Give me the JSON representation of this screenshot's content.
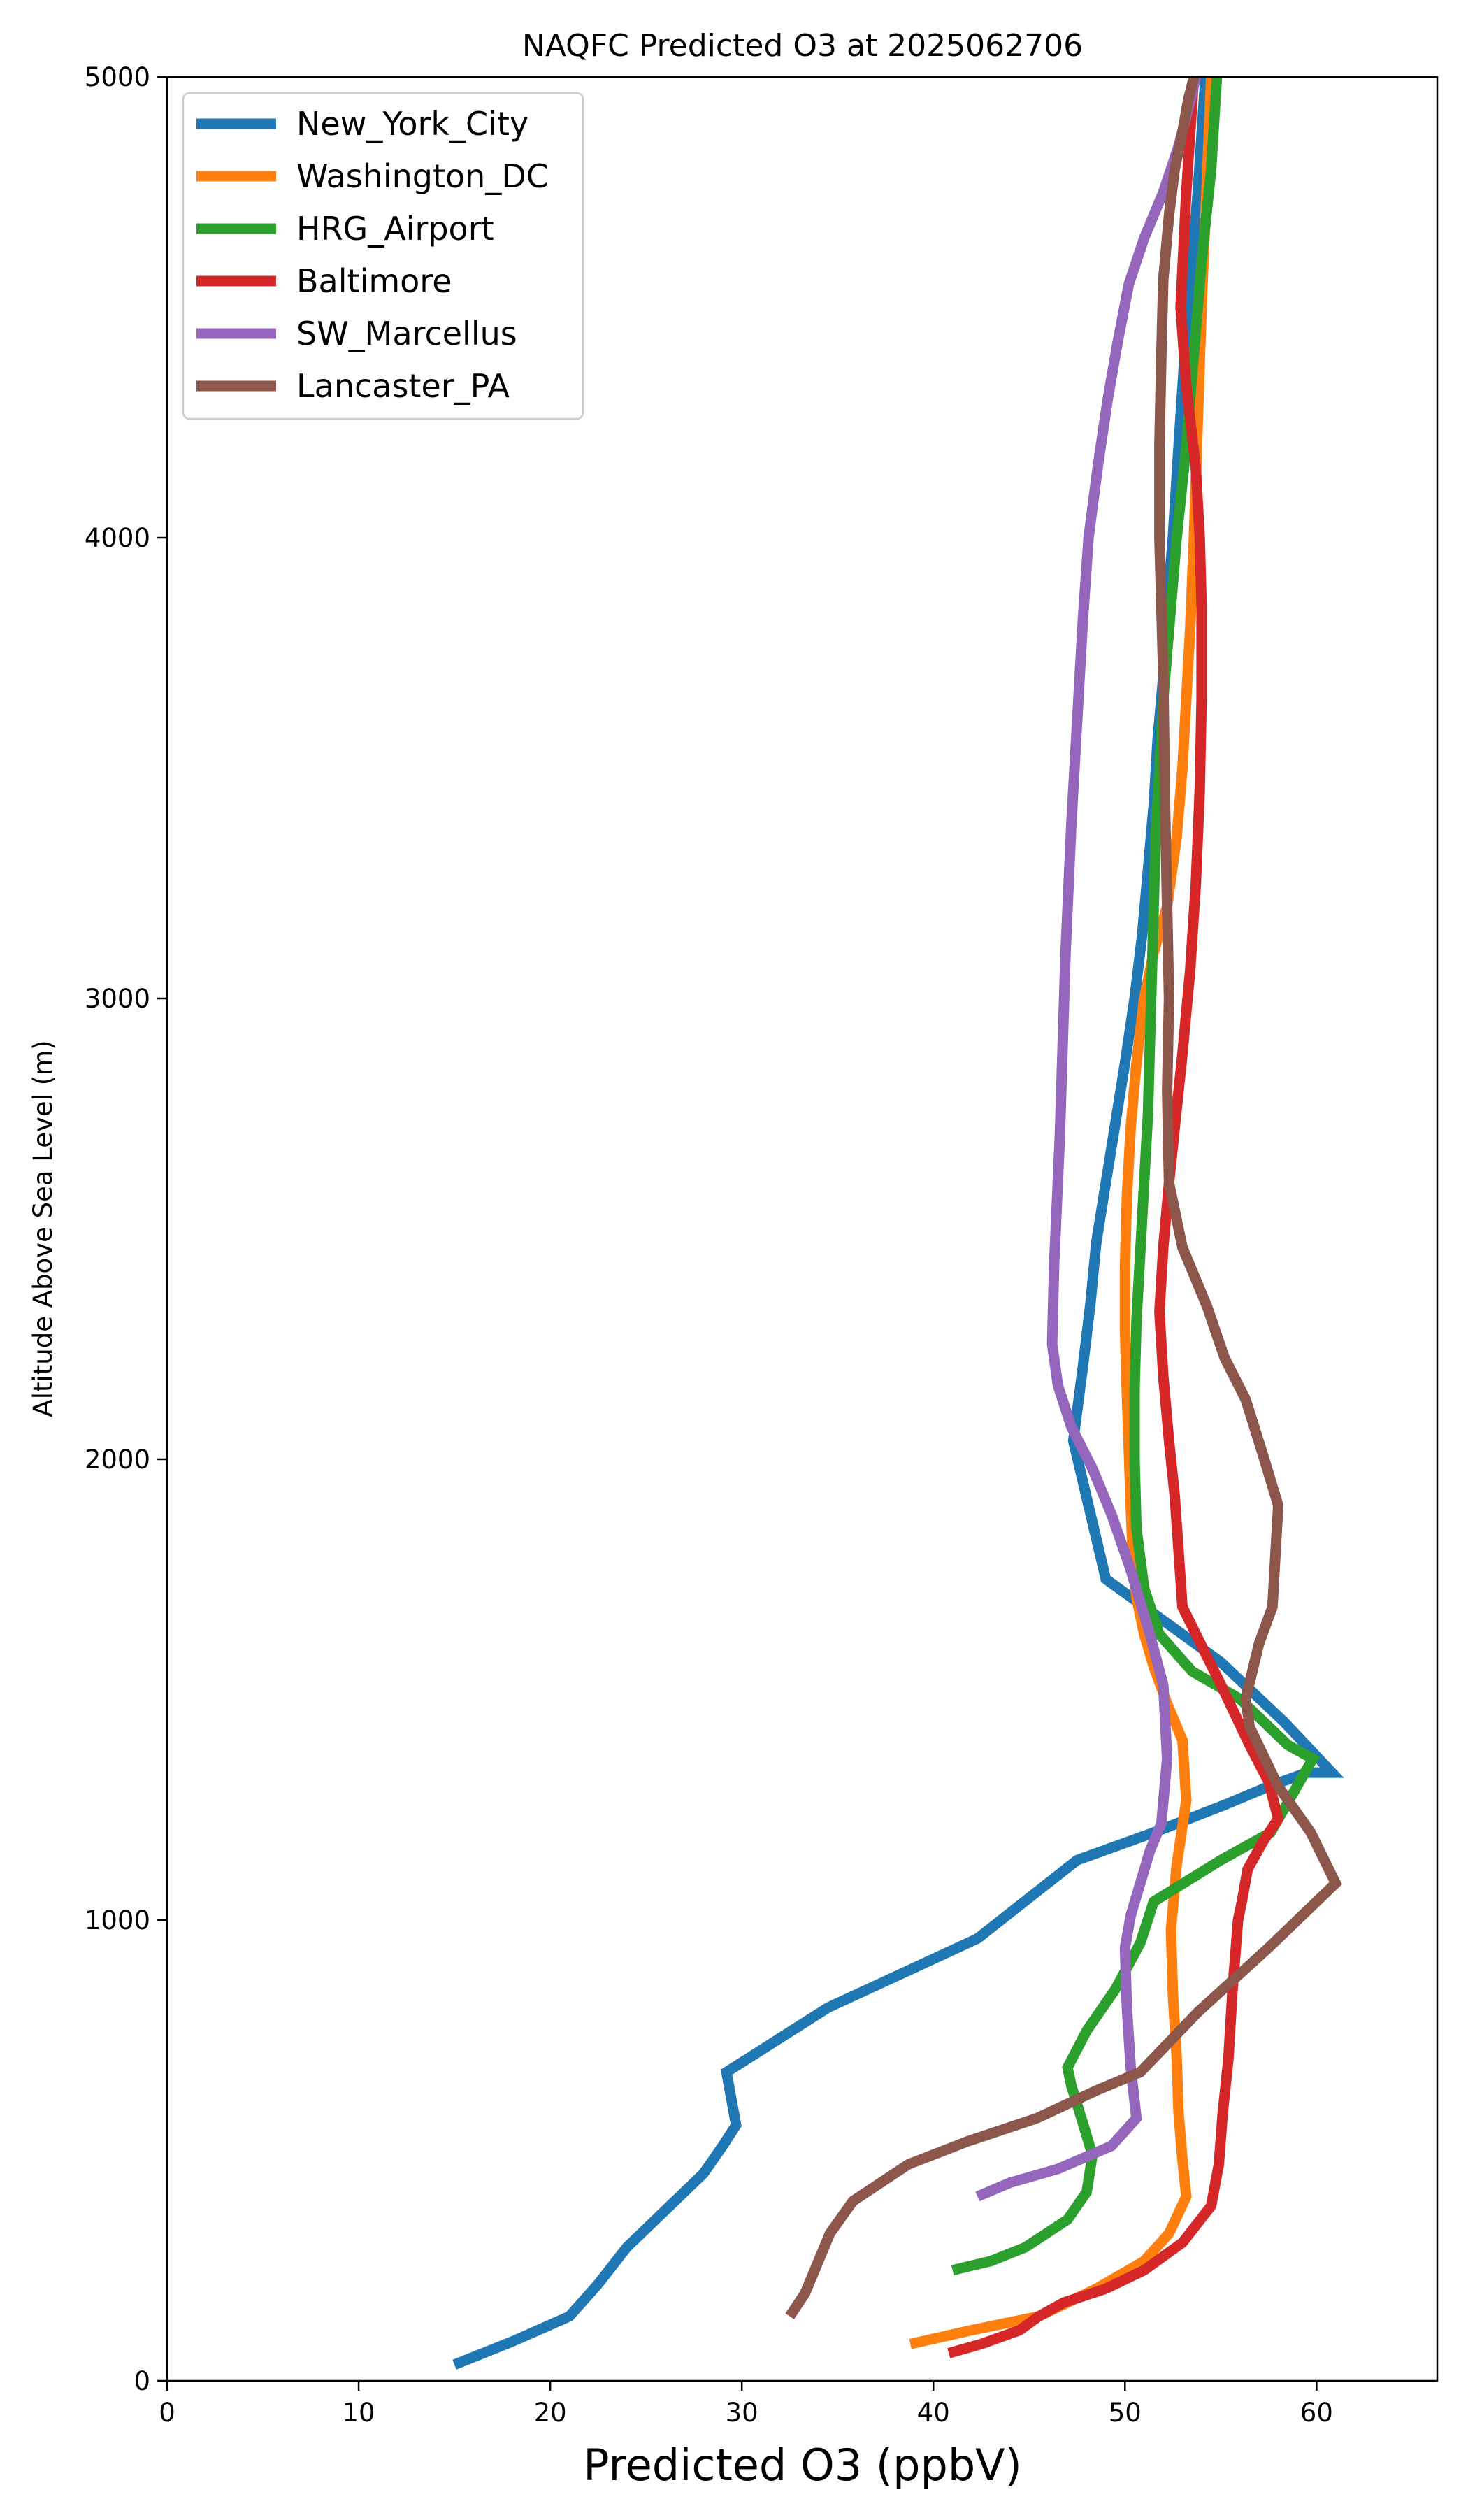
{
  "chart_data": {
    "type": "line",
    "title": "NAQFC Predicted O3 at 2025062706",
    "xlabel": "Predicted O3 (ppbV)",
    "ylabel": "Altitude Above Sea Level (m)",
    "xlim": [
      0,
      66.3
    ],
    "ylim": [
      0,
      5000
    ],
    "xticks": [
      0,
      10,
      20,
      30,
      40,
      50,
      60
    ],
    "yticks": [
      0,
      1000,
      2000,
      3000,
      4000,
      5000
    ],
    "grid": false,
    "legend": "upper-left",
    "series": [
      {
        "name": "New_York_City",
        "color": "#1f77b4",
        "x": [
          15.0,
          18.0,
          21.0,
          22.5,
          24.0,
          26.0,
          28.0,
          29.0,
          29.7,
          29.2,
          34.5,
          42.3,
          47.5,
          51.5,
          55.2,
          57.5,
          59.5,
          60.8,
          58.3,
          55.0,
          52.0,
          49.0,
          47.3,
          47.8,
          48.2,
          48.5,
          49.0,
          49.5,
          50.0,
          50.5,
          50.9,
          51.2,
          51.5,
          51.7,
          52.0,
          52.2,
          52.5,
          52.8,
          53.2,
          53.8,
          54.2
        ],
        "y": [
          35,
          85,
          140,
          210,
          290,
          370,
          450,
          510,
          555,
          670,
          810,
          960,
          1130,
          1190,
          1250,
          1290,
          1320,
          1320,
          1430,
          1560,
          1650,
          1740,
          2040,
          2200,
          2340,
          2470,
          2600,
          2730,
          2860,
          3000,
          3140,
          3280,
          3420,
          3560,
          3700,
          3850,
          4000,
          4200,
          4450,
          4750,
          5000
        ]
      },
      {
        "name": "Washington_DC",
        "color": "#ff7f0e",
        "x": [
          38.8,
          42.0,
          45.5,
          48.5,
          51.0,
          52.3,
          53.2,
          53.0,
          52.8,
          52.7,
          52.5,
          52.4,
          52.7,
          53.2,
          53.0,
          52.2,
          51.5,
          51.0,
          50.6,
          50.4,
          50.3,
          50.2,
          50.1,
          50.0,
          50.0,
          50.1,
          50.3,
          50.6,
          51.0,
          51.5,
          52.2,
          52.7,
          53.0,
          53.2,
          53.4,
          53.6,
          54.0,
          54.5
        ],
        "y": [
          80,
          110,
          140,
          200,
          260,
          320,
          400,
          480,
          580,
          700,
          840,
          980,
          1120,
          1260,
          1390,
          1470,
          1550,
          1620,
          1700,
          1800,
          1900,
          2020,
          2140,
          2280,
          2420,
          2570,
          2720,
          2860,
          3000,
          3100,
          3200,
          3350,
          3500,
          3650,
          3800,
          4000,
          4500,
          5000
        ]
      },
      {
        "name": "HRG_Airport",
        "color": "#2ca02c",
        "x": [
          41.0,
          43.0,
          44.8,
          47.0,
          48.0,
          48.3,
          47.8,
          47.2,
          47.0,
          48.0,
          49.5,
          50.8,
          51.5,
          55.0,
          57.6,
          58.7,
          59.8,
          58.5,
          56.0,
          53.5,
          51.8,
          51.0,
          50.6,
          50.5,
          50.5,
          50.6,
          50.8,
          51.0,
          51.2,
          51.3,
          51.4,
          51.5,
          51.6,
          51.8,
          52.0,
          52.3,
          52.7,
          53.2,
          53.6,
          54.0,
          54.5,
          54.8
        ],
        "y": [
          240,
          260,
          290,
          350,
          410,
          490,
          560,
          640,
          680,
          760,
          850,
          950,
          1040,
          1130,
          1190,
          1270,
          1350,
          1380,
          1480,
          1540,
          1620,
          1720,
          1850,
          2000,
          2150,
          2300,
          2450,
          2600,
          2750,
          2900,
          3050,
          3200,
          3350,
          3500,
          3650,
          3800,
          4000,
          4200,
          4400,
          4600,
          4800,
          5000
        ]
      },
      {
        "name": "Baltimore",
        "color": "#d62728",
        "x": [
          40.8,
          42.5,
          44.5,
          45.5,
          46.8,
          49.0,
          51.0,
          53.0,
          54.5,
          54.9,
          55.1,
          55.4,
          55.6,
          55.9,
          56.1,
          56.4,
          57.2,
          58.0,
          57.5,
          56.5,
          55.7,
          54.9,
          54.3,
          53.0,
          52.8,
          52.6,
          52.3,
          52.0,
          51.8,
          52.0,
          52.3,
          52.6,
          53.0,
          53.4,
          53.7,
          53.9,
          54.0,
          54.0,
          53.9,
          53.7,
          53.2,
          52.9,
          53.2,
          53.6
        ],
        "y": [
          60,
          80,
          110,
          140,
          170,
          200,
          240,
          300,
          380,
          470,
          580,
          700,
          840,
          1000,
          1040,
          1110,
          1170,
          1220,
          1300,
          1380,
          1450,
          1520,
          1570,
          1680,
          1800,
          1920,
          2040,
          2180,
          2320,
          2460,
          2600,
          2720,
          2880,
          3060,
          3250,
          3450,
          3650,
          3850,
          4000,
          4150,
          4330,
          4500,
          4750,
          5000
        ]
      },
      {
        "name": "SW_Marcellus",
        "color": "#9467bd",
        "x": [
          42.3,
          44.0,
          46.5,
          49.3,
          50.6,
          50.3,
          50.1,
          50.0,
          50.3,
          50.8,
          51.3,
          51.9,
          52.2,
          52.0,
          51.3,
          50.3,
          49.3,
          48.3,
          47.2,
          46.5,
          46.2,
          46.3,
          46.6,
          46.9,
          47.2,
          47.5,
          47.8,
          48.1,
          48.6,
          49.1,
          49.6,
          50.2,
          51.0,
          52.0,
          52.8,
          53.3,
          53.7
        ],
        "y": [
          400,
          430,
          460,
          510,
          570,
          680,
          810,
          940,
          1010,
          1080,
          1150,
          1210,
          1350,
          1510,
          1620,
          1760,
          1880,
          1980,
          2070,
          2160,
          2250,
          2420,
          2700,
          3100,
          3380,
          3600,
          3820,
          4000,
          4160,
          4300,
          4420,
          4550,
          4650,
          4750,
          4850,
          4930,
          5000
        ]
      },
      {
        "name": "Lancaster_PA",
        "color": "#8c564b",
        "x": [
          32.5,
          33.3,
          34.0,
          34.6,
          35.8,
          38.7,
          41.8,
          45.4,
          48.5,
          50.8,
          53.8,
          57.5,
          61.0,
          59.7,
          58.0,
          56.5,
          56.3,
          57.0,
          57.7,
          58.0,
          57.2,
          56.3,
          55.2,
          54.3,
          53.0,
          52.3,
          52.2,
          52.3,
          52.2,
          52.1,
          52.0,
          51.8,
          51.8,
          51.9,
          52.0,
          52.3,
          52.6,
          53.0,
          53.3,
          53.6
        ],
        "y": [
          140,
          190,
          260,
          320,
          390,
          470,
          520,
          570,
          630,
          670,
          800,
          940,
          1080,
          1190,
          1290,
          1420,
          1480,
          1600,
          1680,
          1900,
          2010,
          2130,
          2220,
          2330,
          2460,
          2600,
          2800,
          3000,
          3200,
          3400,
          3700,
          4000,
          4200,
          4400,
          4560,
          4700,
          4800,
          4880,
          4950,
          5000
        ]
      }
    ]
  }
}
